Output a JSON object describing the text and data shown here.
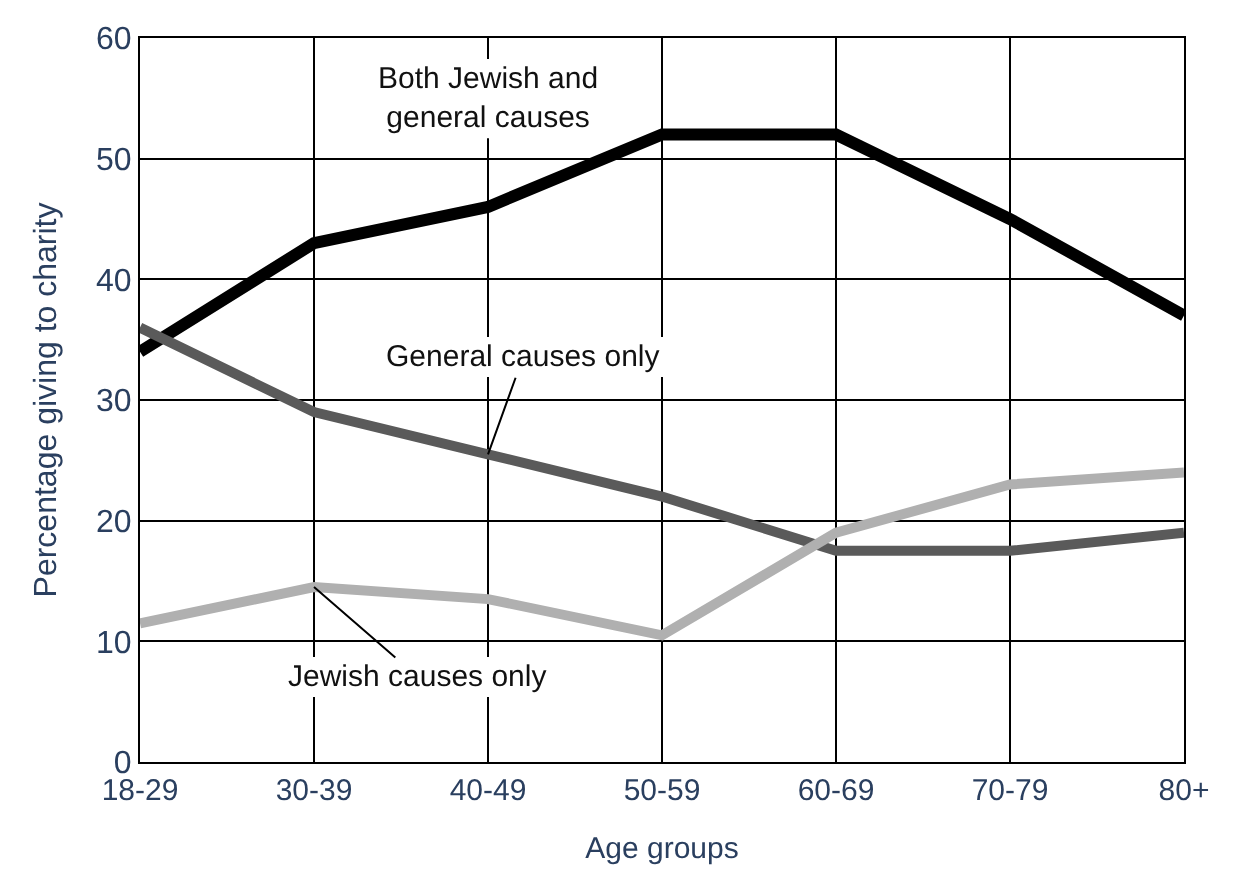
{
  "chart_data": {
    "type": "line",
    "xlabel": "Age groups",
    "ylabel": "Percentage giving to charity",
    "categories": [
      "18-29",
      "30-39",
      "40-49",
      "50-59",
      "60-69",
      "70-79",
      "80+"
    ],
    "series": [
      {
        "color": "#000000",
        "values": [
          34,
          43,
          46,
          52,
          52,
          45,
          37
        ]
      },
      {
        "color": "#5a5a5a",
        "values": [
          36,
          29,
          25.5,
          22,
          17.5,
          17.5,
          19
        ]
      },
      {
        "color": "#b0b0b0",
        "values": [
          11.5,
          14.5,
          13.5,
          10.5,
          19,
          23,
          24
        ]
      }
    ],
    "annotations": [
      {
        "text": "Both Jewish and\ngeneral causes",
        "x": "40-49",
        "y": 46
      },
      {
        "text": "General causes only",
        "x": "40-49",
        "y": 25.5
      },
      {
        "text": "Jewish causes only",
        "x": "30-39",
        "y": 14.5
      }
    ],
    "ylim": [
      0,
      60
    ],
    "yticks": [
      0,
      10,
      20,
      30,
      40,
      50,
      60
    ],
    "grid": true,
    "marker": "none",
    "line_style": "solid"
  }
}
